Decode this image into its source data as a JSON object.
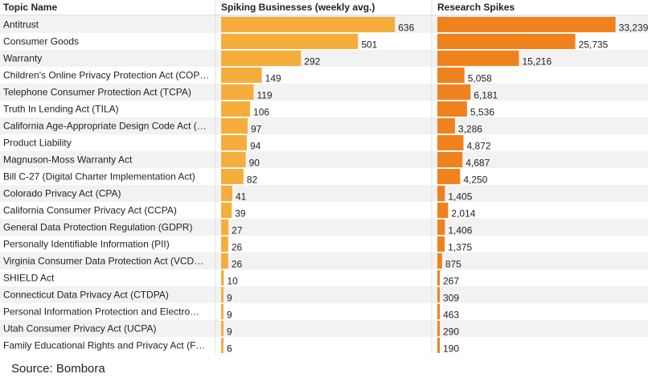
{
  "chart_data": {
    "type": "bar",
    "orientation": "horizontal",
    "columns": {
      "topic": "Topic Name",
      "series_1": "Spiking Businesses (weekly avg.)",
      "series_2": "Research Spikes"
    },
    "categories": [
      "Antitrust",
      "Consumer Goods",
      "Warranty",
      "Children's Online Privacy Protection Act (COP…",
      "Telephone Consumer Protection Act (TCPA)",
      "Truth In Lending Act (TILA)",
      "California Age-Appropriate Design Code Act (…",
      "Product Liability",
      "Magnuson-Moss Warranty Act",
      "Bill C-27 (Digital Charter Implementation Act)",
      "Colorado Privacy Act (CPA)",
      "California Consumer Privacy Act (CCPA)",
      "General Data Protection Regulation (GDPR)",
      "Personally Identifiable Information (PII)",
      "Virginia Consumer Data Protection Act (VCD…",
      "SHIELD Act",
      "Connecticut Data Privacy Act (CTDPA)",
      "Personal Information Protection and Electro…",
      "Utah Consumer Privacy Act (UCPA)",
      "Family Educational Rights and Privacy Act (F…"
    ],
    "series": [
      {
        "name": "Spiking Businesses (weekly avg.)",
        "color": "#f5ae3c",
        "max": 700,
        "values": [
          636,
          501,
          292,
          149,
          119,
          106,
          97,
          94,
          90,
          82,
          41,
          39,
          27,
          26,
          26,
          10,
          9,
          9,
          9,
          6
        ],
        "labels": [
          "636",
          "501",
          "292",
          "149",
          "119",
          "106",
          "97",
          "94",
          "90",
          "82",
          "41",
          "39",
          "27",
          "26",
          "26",
          "10",
          "9",
          "9",
          "9",
          "6"
        ]
      },
      {
        "name": "Research Spikes",
        "color": "#f0821e",
        "max": 36000,
        "values": [
          33239,
          25735,
          15216,
          5058,
          6181,
          5536,
          3286,
          4872,
          4687,
          4250,
          1405,
          2014,
          1406,
          1375,
          875,
          267,
          309,
          463,
          290,
          190
        ],
        "labels": [
          "33,239",
          "25,735",
          "15,216",
          "5,058",
          "6,181",
          "5,536",
          "3,286",
          "4,872",
          "4,687",
          "4,250",
          "1,405",
          "2,014",
          "1,406",
          "1,375",
          "875",
          "267",
          "309",
          "463",
          "290",
          "190"
        ]
      }
    ],
    "source": "Source: Bombora"
  }
}
